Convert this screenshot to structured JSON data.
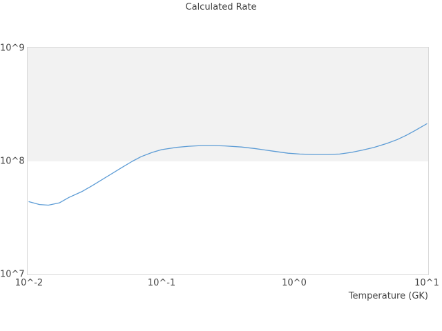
{
  "colors": {
    "background": "#ffffff",
    "plot_border": "#d9d9d9",
    "band_fill": "#f2f2f2",
    "line": "#5b9bd5",
    "title_text": "#3d3d3d",
    "tick_text": "#444444"
  },
  "chart_data": {
    "type": "line",
    "title": "Calculated Rate",
    "xlabel": "Temperature (GK)",
    "ylabel": "",
    "x_scale": "log",
    "y_scale": "log",
    "xlim": [
      0.01,
      10
    ],
    "ylim": [
      10000000.0,
      1000000000.0
    ],
    "grid": false,
    "legend": "none",
    "x_ticks": [
      {
        "value": 0.01,
        "label": "10^-2"
      },
      {
        "value": 0.1,
        "label": "10^-1"
      },
      {
        "value": 1,
        "label": "10^0"
      },
      {
        "value": 10,
        "label": "10^1"
      }
    ],
    "y_ticks": [
      {
        "value": 10000000.0,
        "label": "10^7"
      },
      {
        "value": 100000000.0,
        "label": "10^8"
      },
      {
        "value": 1000000000.0,
        "label": "10^9"
      }
    ],
    "decade_band": {
      "y_from": 100000000.0,
      "y_to": 1000000000.0,
      "color": "#f2f2f2"
    },
    "series": [
      {
        "name": "calculated-rate",
        "color": "#5b9bd5",
        "x": [
          0.01,
          0.012,
          0.014,
          0.017,
          0.02,
          0.025,
          0.03,
          0.04,
          0.05,
          0.06,
          0.07,
          0.085,
          0.1,
          0.13,
          0.16,
          0.2,
          0.25,
          0.3,
          0.4,
          0.5,
          0.7,
          0.9,
          1.1,
          1.4,
          1.8,
          2.2,
          2.7,
          3.3,
          4.0,
          5.0,
          6.0,
          7.0,
          8.0,
          9.0,
          10.0
        ],
        "y": [
          44000000.0,
          41500000.0,
          41000000.0,
          43000000.0,
          48000000.0,
          54000000.0,
          61000000.0,
          75000000.0,
          88000000.0,
          100000000.0,
          110000000.0,
          120000000.0,
          127000000.0,
          133000000.0,
          136000000.0,
          138000000.0,
          138000000.0,
          137000000.0,
          134000000.0,
          130000000.0,
          123000000.0,
          118000000.0,
          116000000.0,
          115000000.0,
          115000000.0,
          116000000.0,
          120000000.0,
          126000000.0,
          133000000.0,
          144000000.0,
          156000000.0,
          170000000.0,
          185000000.0,
          200000000.0,
          215000000.0
        ]
      }
    ]
  }
}
